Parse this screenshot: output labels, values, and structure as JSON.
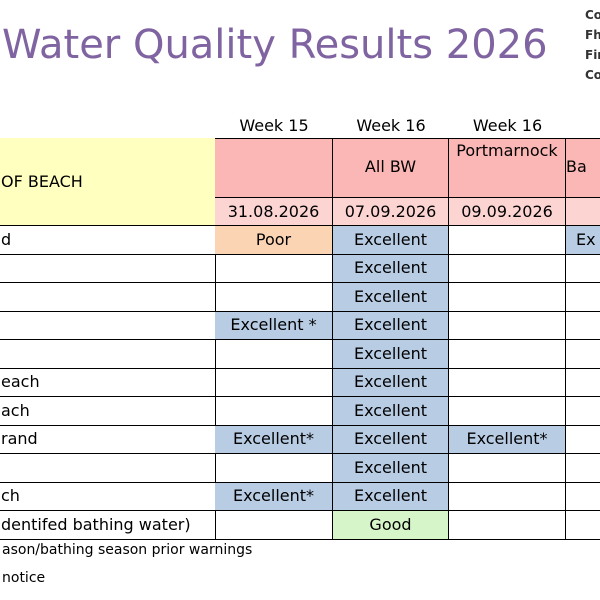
{
  "header": {
    "title": "Water Quality Results 2026",
    "logo_lines": [
      "Co",
      "Fh",
      "Fin",
      "Co"
    ]
  },
  "table": {
    "weeks": [
      "Week 15",
      "Week 16",
      "Week 16",
      "W"
    ],
    "name_header": "OF BEACH",
    "name_color": "#ffffc0",
    "locations": [
      null,
      "All BW",
      "Portmarnock",
      "Ba"
    ],
    "location_color": "#fbb7b5",
    "dates": [
      "31.08.2026",
      "07.09.2026",
      "09.09.2026",
      "10."
    ],
    "date_color": "#fcd5d3",
    "rows": [
      {
        "name": "d",
        "results": [
          "Poor",
          "Excellent",
          null,
          "Ex"
        ],
        "colors": [
          "#fbd4b4",
          "#b8cce4",
          null,
          "#b8cce4"
        ]
      },
      {
        "name": null,
        "results": [
          null,
          "Excellent",
          null,
          null
        ],
        "colors": [
          null,
          "#b8cce4",
          null,
          null
        ]
      },
      {
        "name": null,
        "results": [
          null,
          "Excellent",
          null,
          null
        ],
        "colors": [
          null,
          "#b8cce4",
          null,
          null
        ]
      },
      {
        "name": null,
        "results": [
          "Excellent *",
          "Excellent",
          null,
          null
        ],
        "colors": [
          "#b8cce4",
          "#b8cce4",
          null,
          null
        ]
      },
      {
        "name": null,
        "results": [
          null,
          "Excellent",
          null,
          null
        ],
        "colors": [
          null,
          "#b8cce4",
          null,
          null
        ]
      },
      {
        "name": "each",
        "results": [
          null,
          "Excellent",
          null,
          null
        ],
        "colors": [
          null,
          "#b8cce4",
          null,
          null
        ]
      },
      {
        "name": "ach",
        "results": [
          null,
          "Excellent",
          null,
          null
        ],
        "colors": [
          null,
          "#b8cce4",
          null,
          null
        ]
      },
      {
        "name": "rand",
        "results": [
          "Excellent*",
          "Excellent",
          "Excellent*",
          null
        ],
        "colors": [
          "#b8cce4",
          "#b8cce4",
          "#b8cce4",
          null
        ]
      },
      {
        "name": null,
        "results": [
          null,
          "Excellent",
          null,
          null
        ],
        "colors": [
          null,
          "#b8cce4",
          null,
          null
        ]
      },
      {
        "name": "ch",
        "results": [
          "Excellent*",
          "Excellent",
          null,
          null
        ],
        "colors": [
          "#b8cce4",
          "#b8cce4",
          null,
          null
        ]
      },
      {
        "name": "dentifed bathing water)",
        "results": [
          null,
          "Good",
          null,
          null
        ],
        "colors": [
          null,
          "#d6f5c9",
          null,
          null
        ]
      }
    ]
  },
  "footnotes": [
    "ason/bathing season prior warnings",
    "notice"
  ]
}
